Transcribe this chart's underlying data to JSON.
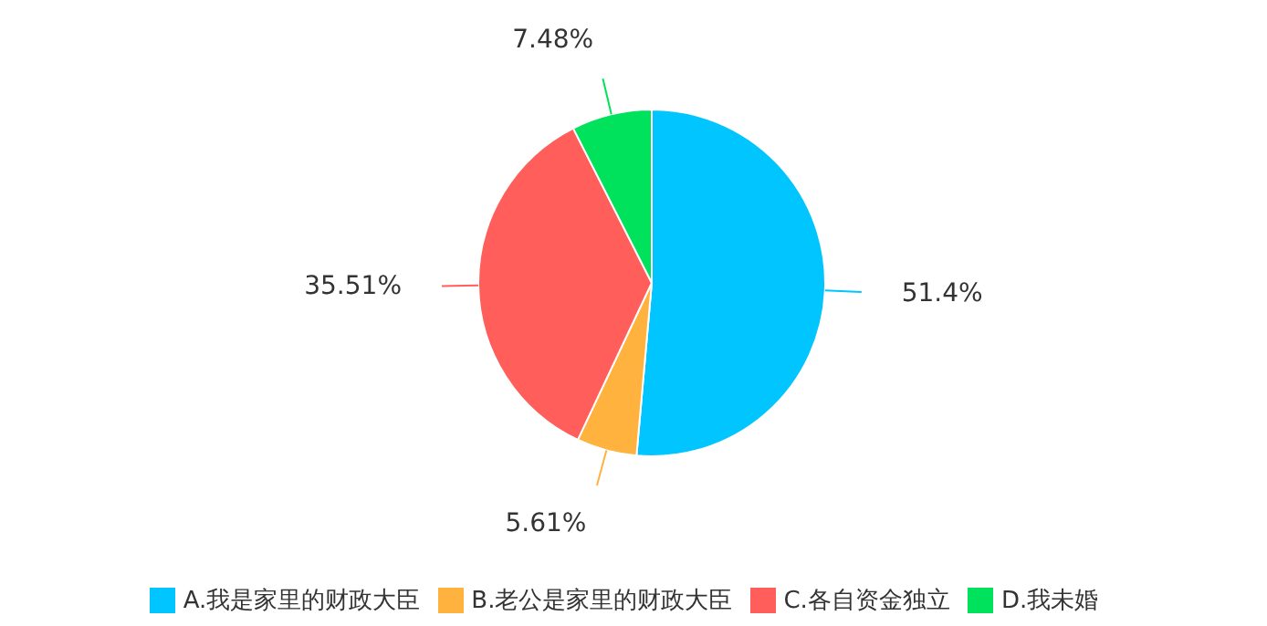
{
  "chart_data": {
    "type": "pie",
    "categories": [
      "A.我是家里的财政大臣",
      "B.老公是家里的财政大臣",
      "C.各自资金独立",
      "D.我未婚"
    ],
    "values": [
      51.4,
      5.61,
      35.51,
      7.48
    ],
    "colors": [
      "#00c5fe",
      "#ffb23e",
      "#ff5e5a",
      "#00e25b"
    ],
    "value_labels": [
      "51.4%",
      "5.61%",
      "35.51%",
      "7.48%"
    ],
    "legend": "bottom"
  }
}
